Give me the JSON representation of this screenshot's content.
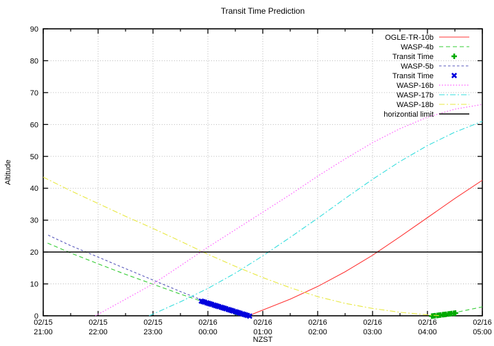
{
  "chart_data": {
    "type": "line",
    "title": "Transit Time Prediction",
    "xlabel": "NZST",
    "ylabel": "Altitude",
    "ylim": [
      0,
      90
    ],
    "ytick_step": 10,
    "xlim_hours": [
      0,
      8
    ],
    "grid": true,
    "legend_position": "top-right-inside",
    "x_axis_ticks": [
      {
        "date": "02/15",
        "time": "21:00"
      },
      {
        "date": "02/15",
        "time": "22:00"
      },
      {
        "date": "02/15",
        "time": "23:00"
      },
      {
        "date": "02/16",
        "time": "00:00"
      },
      {
        "date": "02/16",
        "time": "01:00"
      },
      {
        "date": "02/16",
        "time": "02:00"
      },
      {
        "date": "02/16",
        "time": "03:00"
      },
      {
        "date": "02/16",
        "time": "04:00"
      },
      {
        "date": "02/16",
        "time": "05:00"
      }
    ],
    "series": [
      {
        "name": "OGLE-TR-10b",
        "color": "#ff3333",
        "style": "solid",
        "width": 1.1,
        "segments": [
          [
            [
              3.74,
              0
            ],
            [
              4.0,
              1.8
            ],
            [
              4.5,
              5.2
            ],
            [
              5.0,
              9.2
            ],
            [
              5.5,
              13.8
            ],
            [
              6.0,
              19.0
            ],
            [
              6.5,
              24.8
            ],
            [
              7.0,
              30.8
            ],
            [
              7.5,
              36.8
            ],
            [
              8.0,
              42.5
            ]
          ]
        ]
      },
      {
        "name": "WASP-4b",
        "color": "#33cc33",
        "style": "dashed",
        "width": 1.1,
        "segments": [
          [
            [
              0.08,
              22.8
            ],
            [
              0.5,
              19.7
            ],
            [
              1.0,
              16.3
            ],
            [
              1.5,
              13.0
            ],
            [
              2.0,
              9.9
            ],
            [
              2.5,
              6.8
            ],
            [
              3.0,
              3.9
            ],
            [
              3.4,
              1.1
            ],
            [
              3.56,
              0
            ]
          ],
          [
            [
              7.2,
              0
            ],
            [
              7.5,
              1.0
            ],
            [
              8.0,
              2.8
            ]
          ]
        ]
      },
      {
        "name": "Transit Time",
        "color": "#00aa00",
        "marker": "plus",
        "points": [
          [
            7.08,
            -0.1
          ],
          [
            7.11,
            -0.03
          ],
          [
            7.14,
            0.03
          ],
          [
            7.18,
            0.12
          ],
          [
            7.21,
            0.19
          ],
          [
            7.24,
            0.25
          ],
          [
            7.28,
            0.34
          ],
          [
            7.31,
            0.41
          ],
          [
            7.34,
            0.47
          ],
          [
            7.38,
            0.56
          ],
          [
            7.41,
            0.63
          ],
          [
            7.44,
            0.69
          ],
          [
            7.48,
            0.78
          ],
          [
            7.51,
            0.85
          ]
        ]
      },
      {
        "name": "WASP-5b",
        "color": "#5555bb",
        "style": "dashed_short",
        "width": 1.1,
        "segments": [
          [
            [
              0.09,
              25.3
            ],
            [
              0.5,
              22.0
            ],
            [
              1.0,
              18.4
            ],
            [
              1.5,
              14.8
            ],
            [
              2.0,
              11.2
            ],
            [
              2.5,
              7.6
            ],
            [
              3.0,
              4.2
            ],
            [
              3.5,
              1.0
            ],
            [
              3.78,
              -0.1
            ]
          ]
        ]
      },
      {
        "name": "Transit Time",
        "color": "#0000dd",
        "marker": "x",
        "points": [
          [
            2.88,
            4.6
          ],
          [
            2.91,
            4.44
          ],
          [
            2.94,
            4.28
          ],
          [
            2.98,
            4.07
          ],
          [
            3.01,
            3.91
          ],
          [
            3.04,
            3.75
          ],
          [
            3.07,
            3.59
          ],
          [
            3.11,
            3.37
          ],
          [
            3.14,
            3.21
          ],
          [
            3.17,
            3.05
          ],
          [
            3.2,
            2.89
          ],
          [
            3.24,
            2.68
          ],
          [
            3.27,
            2.52
          ],
          [
            3.3,
            2.36
          ],
          [
            3.33,
            2.2
          ],
          [
            3.37,
            1.98
          ],
          [
            3.4,
            1.82
          ],
          [
            3.43,
            1.66
          ],
          [
            3.46,
            1.5
          ],
          [
            3.5,
            1.29
          ],
          [
            3.53,
            1.13
          ],
          [
            3.56,
            0.97
          ],
          [
            3.59,
            0.81
          ],
          [
            3.63,
            0.59
          ],
          [
            3.66,
            0.43
          ],
          [
            3.69,
            0.27
          ],
          [
            3.72,
            0.11
          ],
          [
            3.76,
            -0.1
          ]
        ]
      },
      {
        "name": "WASP-16b",
        "color": "#ff55ff",
        "style": "dotted",
        "width": 1.2,
        "segments": [
          [
            [
              0.95,
              0
            ],
            [
              1.5,
              5.2
            ],
            [
              2.0,
              10.0
            ],
            [
              2.5,
              15.7
            ],
            [
              3.0,
              21.5
            ],
            [
              3.5,
              27.0
            ],
            [
              4.0,
              32.5
            ],
            [
              4.5,
              38.0
            ],
            [
              5.0,
              43.8
            ],
            [
              5.5,
              49.2
            ],
            [
              6.0,
              54.3
            ],
            [
              6.5,
              58.7
            ],
            [
              7.0,
              62.3
            ],
            [
              7.5,
              64.8
            ],
            [
              8.0,
              66.3
            ]
          ]
        ]
      },
      {
        "name": "WASP-17b",
        "color": "#33dddd",
        "style": "dashdot",
        "width": 1.1,
        "segments": [
          [
            [
              1.93,
              0
            ],
            [
              2.5,
              4.4
            ],
            [
              3.0,
              8.6
            ],
            [
              3.5,
              13.4
            ],
            [
              4.0,
              18.8
            ],
            [
              4.5,
              24.6
            ],
            [
              5.0,
              30.6
            ],
            [
              5.5,
              36.8
            ],
            [
              6.0,
              42.8
            ],
            [
              6.5,
              48.4
            ],
            [
              7.0,
              53.4
            ],
            [
              7.5,
              57.6
            ],
            [
              8.0,
              61.0
            ]
          ]
        ]
      },
      {
        "name": "WASP-18b",
        "color": "#e8e840",
        "style": "dashdot",
        "width": 1.1,
        "segments": [
          [
            [
              0,
              43.5
            ],
            [
              0.5,
              39.2
            ],
            [
              1.0,
              35.2
            ],
            [
              1.5,
              31.2
            ],
            [
              2.0,
              27.4
            ],
            [
              2.5,
              23.4
            ],
            [
              3.0,
              19.3
            ],
            [
              3.5,
              15.5
            ],
            [
              4.0,
              12.0
            ],
            [
              4.5,
              8.8
            ],
            [
              5.0,
              6.0
            ],
            [
              5.5,
              3.9
            ],
            [
              6.0,
              2.3
            ],
            [
              6.5,
              1.1
            ],
            [
              7.0,
              0.3
            ],
            [
              7.25,
              0
            ]
          ]
        ]
      },
      {
        "name": "horizontial limit",
        "color": "#000000",
        "style": "solid",
        "width": 1.5,
        "segments": [
          [
            [
              0,
              20
            ],
            [
              8,
              20
            ]
          ]
        ]
      }
    ]
  }
}
